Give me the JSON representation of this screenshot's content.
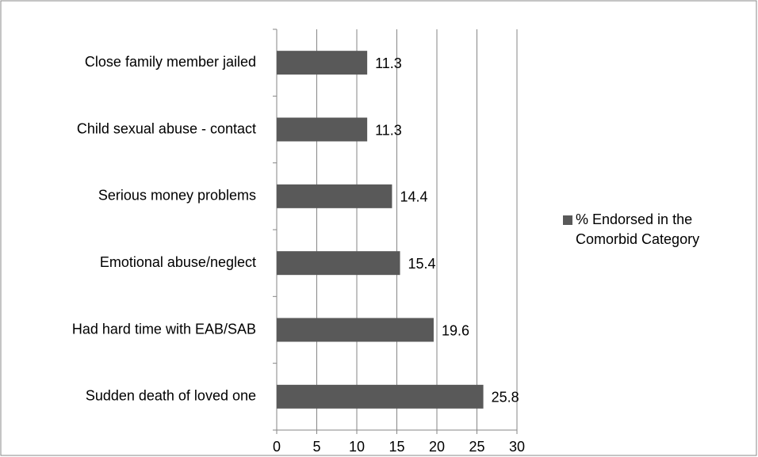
{
  "chart_data": {
    "type": "barh",
    "categories": [
      "Close family member jailed",
      "Child sexual abuse - contact",
      "Serious money problems",
      "Emotional abuse/neglect",
      "Had hard time with EAB/SAB",
      "Sudden death of loved one"
    ],
    "series": [
      {
        "name": "% Endorsed in the Comorbid Category",
        "color": "#595959",
        "values": [
          11.3,
          11.3,
          14.4,
          15.4,
          19.6,
          25.8
        ]
      }
    ],
    "xlim": [
      0,
      30
    ],
    "xticks": [
      0,
      5,
      10,
      15,
      20,
      25,
      30
    ],
    "grid": true,
    "legend": "right"
  }
}
